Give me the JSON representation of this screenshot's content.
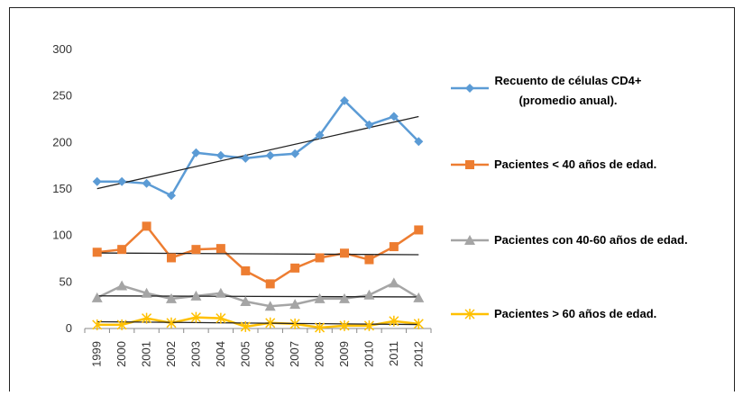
{
  "chart_data": {
    "type": "line",
    "categories": [
      "1999",
      "2000",
      "2001",
      "2002",
      "2003",
      "2004",
      "2005",
      "2006",
      "2007",
      "2008",
      "2009",
      "2010",
      "2011",
      "2012"
    ],
    "series": [
      {
        "name": "Recuento de células CD4+ (promedio anual).",
        "color": "#5b9bd5",
        "marker": "diamond",
        "values": [
          158,
          158,
          156,
          143,
          189,
          186,
          183,
          186,
          188,
          208,
          245,
          219,
          228,
          201
        ]
      },
      {
        "name": "Pacientes < 40 años de edad.",
        "color": "#ed7d31",
        "marker": "square",
        "values": [
          82,
          85,
          110,
          76,
          85,
          86,
          62,
          48,
          65,
          76,
          81,
          74,
          88,
          106
        ]
      },
      {
        "name": "Pacientes con 40-60 años de edad.",
        "color": "#a5a5a5",
        "marker": "triangle",
        "values": [
          33,
          46,
          38,
          32,
          35,
          38,
          29,
          24,
          26,
          32,
          32,
          36,
          49,
          33
        ]
      },
      {
        "name": "Pacientes > 60 años de edad.",
        "color": "#ffc000",
        "marker": "x",
        "values": [
          4,
          4,
          11,
          6,
          12,
          11,
          2,
          6,
          5,
          1,
          3,
          3,
          8,
          5
        ]
      }
    ],
    "ylim": [
      0,
      300
    ],
    "yticks": [
      0,
      50,
      100,
      150,
      200,
      250,
      300
    ],
    "trendline": true,
    "grid": false,
    "legend": "right"
  }
}
